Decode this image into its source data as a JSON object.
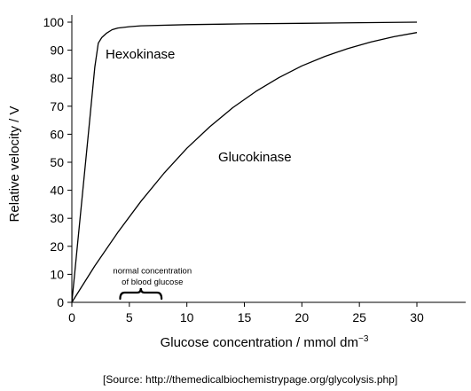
{
  "chart_data": {
    "type": "line",
    "title": "",
    "xlabel": "Glucose concentration / mmol dm",
    "xlabel_superscript": "−3",
    "ylabel": "Relative velocity / V",
    "xlim": [
      0,
      35
    ],
    "ylim": [
      0,
      100
    ],
    "xticks": [
      0,
      5,
      10,
      15,
      20,
      25,
      30
    ],
    "yticks": [
      0,
      10,
      20,
      30,
      40,
      50,
      60,
      70,
      80,
      90,
      100
    ],
    "grid": false,
    "legend": "none",
    "series": [
      {
        "name": "Hexokinase",
        "x": [
          0,
          0.5,
          1.0,
          1.5,
          2.0,
          2.3,
          2.6,
          3.0,
          3.5,
          4.0,
          5.0,
          6.0,
          10,
          15,
          20,
          25,
          30
        ],
        "y": [
          0,
          21,
          42,
          63,
          84,
          92.5,
          94.5,
          96,
          97.3,
          97.9,
          98.4,
          98.7,
          99.1,
          99.4,
          99.6,
          99.8,
          100
        ],
        "color": "#000000"
      },
      {
        "name": "Glucokinase",
        "x": [
          0,
          2,
          4,
          6,
          8,
          10,
          12,
          14,
          16,
          18,
          20,
          22,
          24,
          26,
          28,
          30
        ],
        "y": [
          0,
          13,
          25,
          36,
          46,
          55,
          62.7,
          69.5,
          75.3,
          80.2,
          84.4,
          87.8,
          90.6,
          92.9,
          94.8,
          96.3
        ],
        "color": "#000000"
      }
    ],
    "annotations": [
      {
        "text": "normal concentration",
        "x": 7.0,
        "y": 11.3
      },
      {
        "text": "of blood glucose",
        "x": 7.0,
        "y": 7.3
      }
    ],
    "brace": {
      "from": 4.2,
      "to": 7.8
    }
  },
  "source_text": "[Source: http://themedicalbiochemistrypage.org/glycolysis.php]"
}
